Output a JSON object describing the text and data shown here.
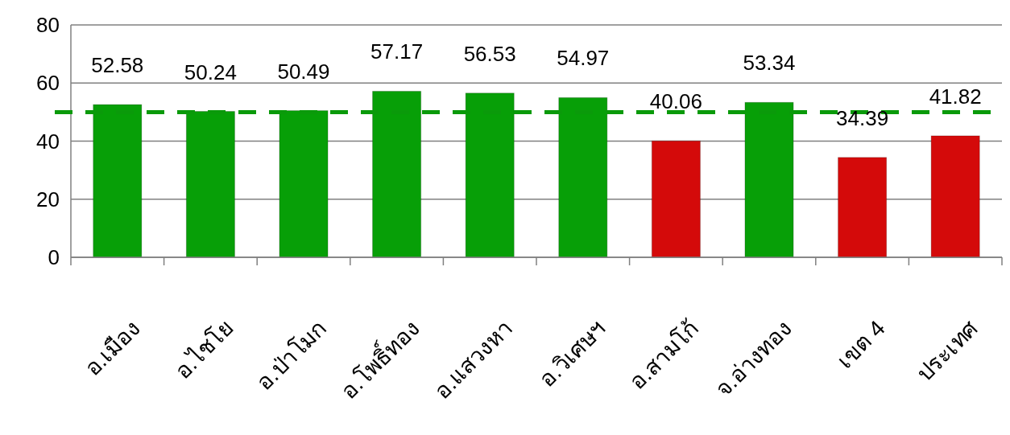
{
  "chart_data": {
    "type": "bar",
    "categories": [
      "อ.เมือง",
      "อ.ไชโย",
      "อ.ป่าโมก",
      "อ.โพธิ์ทอง",
      "อ.แสวงหา",
      "อ.วิเศษฯ",
      "อ.สามโก้",
      "จ.อ่างทอง",
      "เขต 4",
      "ประเทศ"
    ],
    "values": [
      52.58,
      50.24,
      50.49,
      57.17,
      56.53,
      54.97,
      40.06,
      53.34,
      34.39,
      41.82
    ],
    "colors": [
      "#079f07",
      "#079f07",
      "#079f07",
      "#079f07",
      "#079f07",
      "#079f07",
      "#d40a0a",
      "#079f07",
      "#d40a0a",
      "#d40a0a"
    ],
    "ylim": [
      0,
      80
    ],
    "yticks": [
      0,
      20,
      40,
      60,
      80
    ],
    "grid": "y",
    "data_labels": true,
    "ref_lines": [
      {
        "axis": "y",
        "value": 50,
        "color": "#0a9a0a",
        "line_style": "dashed"
      }
    ]
  }
}
